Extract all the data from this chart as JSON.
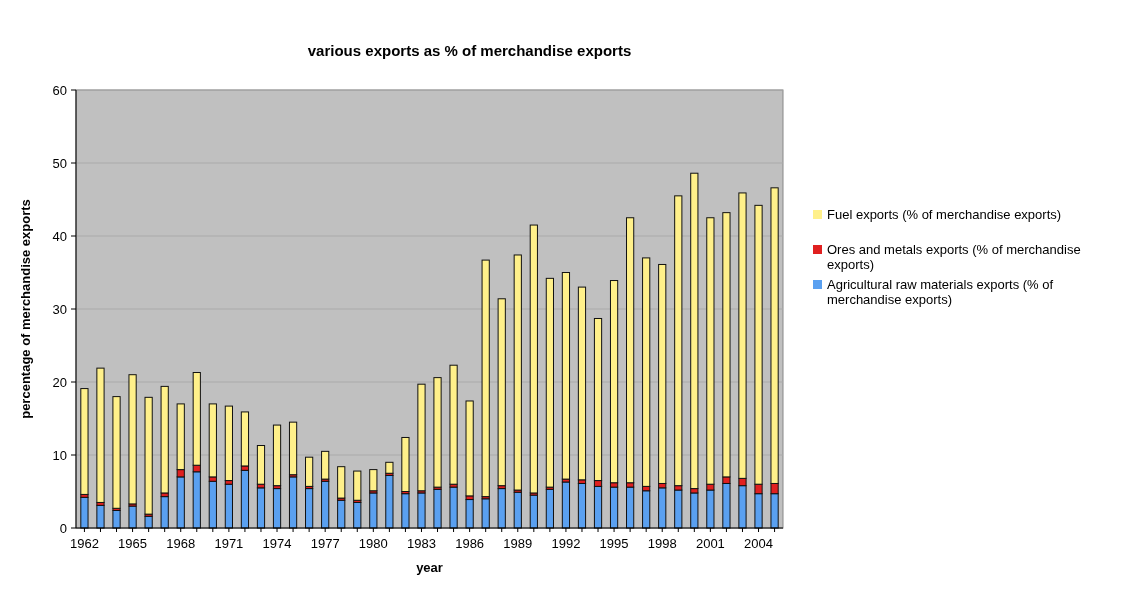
{
  "chart_data": {
    "type": "bar",
    "title": "various exports as % of merchandise exports",
    "xlabel": "year",
    "ylabel": "percentage of merchandise exports",
    "categories": [
      "1962",
      null,
      null,
      "1965",
      null,
      null,
      "1968",
      null,
      null,
      "1971",
      null,
      null,
      "1974",
      null,
      null,
      "1977",
      null,
      null,
      "1980",
      null,
      null,
      "1983",
      null,
      null,
      "1986",
      null,
      null,
      "1989",
      null,
      null,
      "1992",
      null,
      null,
      "1995",
      null,
      null,
      "1998",
      null,
      null,
      "2001",
      null,
      null,
      "2004",
      null
    ],
    "stacked": true,
    "ylim": [
      0,
      60
    ],
    "yticks": [
      0,
      10,
      20,
      30,
      40,
      50,
      60
    ],
    "grid": "y",
    "legend": "right",
    "series": [
      {
        "name": "Agricultural raw materials exports (% of merchandise exports)",
        "color": "#5aa0f0",
        "values": [
          4.2,
          3.1,
          2.4,
          3.0,
          1.6,
          4.3,
          7.0,
          7.7,
          6.4,
          6.0,
          7.9,
          5.5,
          5.4,
          7.0,
          5.4,
          6.4,
          3.8,
          3.5,
          4.8,
          7.2,
          4.7,
          4.8,
          5.3,
          5.6,
          3.9,
          4.0,
          5.4,
          4.9,
          4.5,
          5.3,
          6.3,
          6.1,
          5.7,
          5.6,
          5.6,
          5.1,
          5.5,
          5.2,
          4.8,
          5.2,
          6.1,
          5.8,
          4.7,
          4.7
        ]
      },
      {
        "name": "Ores and metals exports (% of merchandise exports)",
        "color": "#e02020",
        "values": [
          0.4,
          0.4,
          0.3,
          0.3,
          0.3,
          0.5,
          1.0,
          0.9,
          0.6,
          0.5,
          0.6,
          0.5,
          0.4,
          0.3,
          0.3,
          0.3,
          0.3,
          0.3,
          0.3,
          0.3,
          0.3,
          0.3,
          0.3,
          0.4,
          0.5,
          0.3,
          0.4,
          0.3,
          0.3,
          0.3,
          0.4,
          0.5,
          0.8,
          0.6,
          0.6,
          0.6,
          0.6,
          0.6,
          0.6,
          0.8,
          0.9,
          1.0,
          1.3,
          1.4
        ]
      },
      {
        "name": "Fuel exports (% of merchandise exports)",
        "color": "#fff08a",
        "values": [
          14.5,
          18.4,
          15.3,
          17.7,
          16.0,
          14.6,
          9.0,
          12.7,
          10.0,
          10.2,
          7.4,
          5.3,
          8.3,
          7.2,
          4.0,
          3.8,
          4.3,
          4.0,
          2.9,
          1.5,
          7.4,
          14.6,
          15.0,
          16.3,
          13.0,
          32.4,
          25.6,
          32.2,
          36.7,
          28.6,
          28.3,
          26.4,
          22.2,
          27.7,
          36.3,
          31.3,
          30.0,
          39.7,
          43.2,
          36.5,
          36.2,
          39.1,
          38.2,
          40.5
        ]
      }
    ]
  }
}
